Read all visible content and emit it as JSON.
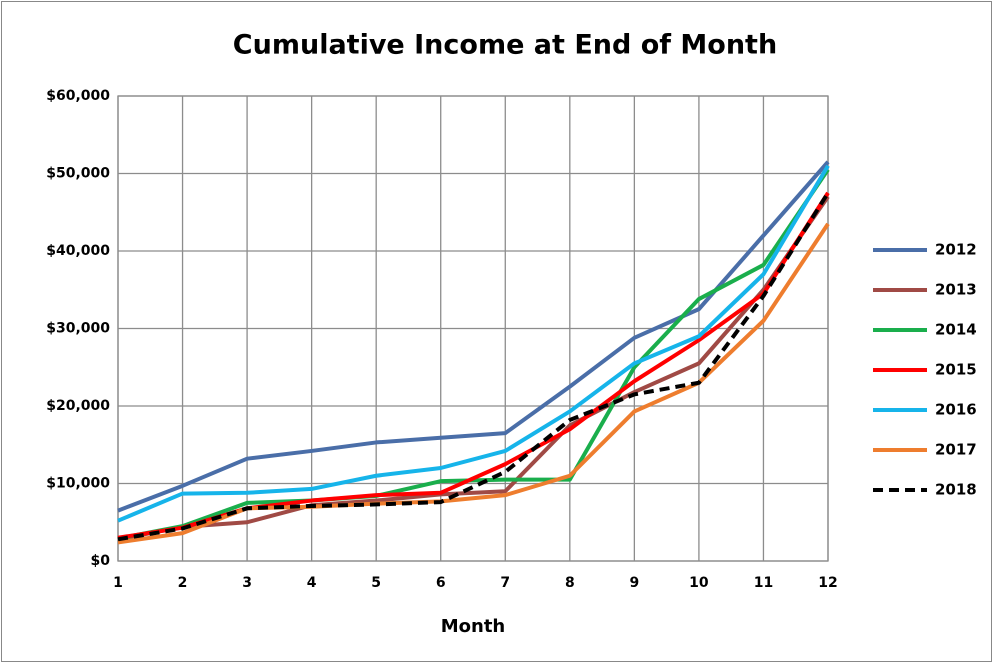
{
  "chart_data": {
    "type": "line",
    "title": "Cumulative Income at End of Month",
    "x_label": "Month",
    "x": [
      1,
      2,
      3,
      4,
      5,
      6,
      7,
      8,
      9,
      10,
      11,
      12
    ],
    "xlim": [
      1,
      12
    ],
    "xticks": [
      1,
      2,
      3,
      4,
      5,
      6,
      7,
      8,
      9,
      10,
      11,
      12
    ],
    "ylim": [
      0,
      60000
    ],
    "yticks": [
      {
        "value": 0,
        "label": "$0"
      },
      {
        "value": 10000,
        "label": "$10,000"
      },
      {
        "value": 20000,
        "label": "$20,000"
      },
      {
        "value": 30000,
        "label": "$30,000"
      },
      {
        "value": 40000,
        "label": "$40,000"
      },
      {
        "value": 50000,
        "label": "$50,000"
      },
      {
        "value": 60000,
        "label": "$60,000"
      }
    ],
    "grid": true,
    "legend": "right",
    "series": [
      {
        "name": "2012",
        "color": "#4a6ea8",
        "values": [
          6500,
          9700,
          13200,
          14200,
          15300,
          15900,
          16500,
          22500,
          28800,
          32500,
          42000,
          51500
        ]
      },
      {
        "name": "2013",
        "color": "#a04a45",
        "values": [
          2800,
          4400,
          5000,
          7200,
          7800,
          8600,
          9000,
          17500,
          21800,
          25500,
          35000,
          47000
        ]
      },
      {
        "name": "2014",
        "color": "#1aae4c",
        "values": [
          2900,
          4500,
          7500,
          7800,
          8400,
          10300,
          10500,
          10500,
          25000,
          33800,
          38200,
          50500
        ]
      },
      {
        "name": "2015",
        "color": "#ff0000",
        "values": [
          3000,
          4300,
          6800,
          7800,
          8500,
          8800,
          12500,
          17000,
          23200,
          28500,
          34500,
          47500
        ]
      },
      {
        "name": "2016",
        "color": "#16b4ea",
        "values": [
          5200,
          8700,
          8800,
          9300,
          11000,
          12000,
          14200,
          19300,
          25500,
          29000,
          37000,
          51000
        ]
      },
      {
        "name": "2017",
        "color": "#ee7d2e",
        "values": [
          2400,
          3600,
          6800,
          7000,
          7400,
          7700,
          8500,
          11000,
          19300,
          23000,
          31000,
          43500
        ]
      },
      {
        "name": "2018",
        "color": "#000000",
        "dashed": true,
        "values": [
          2800,
          4200,
          6800,
          7100,
          7300,
          7600,
          11500,
          18200,
          21500,
          23000,
          34200,
          47500
        ]
      }
    ]
  }
}
